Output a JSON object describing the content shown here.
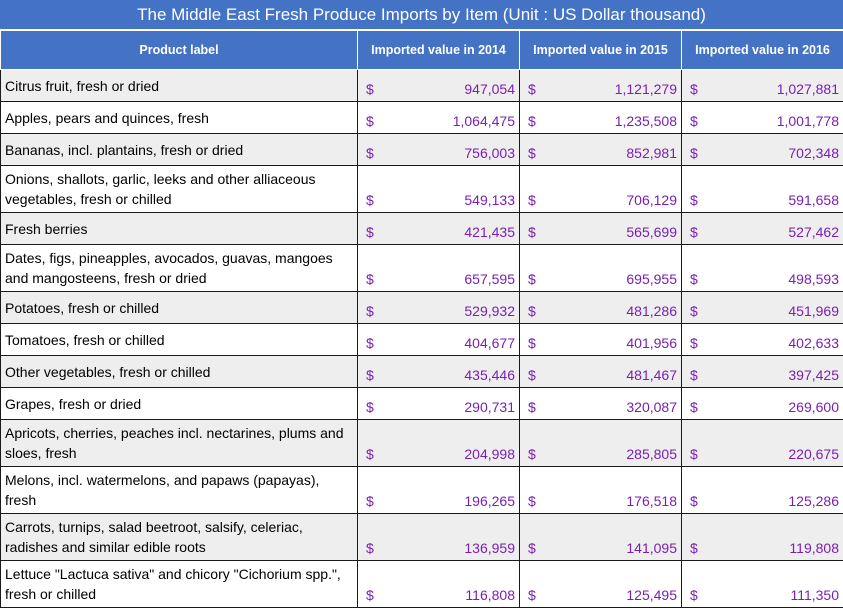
{
  "chart_data": {
    "type": "table",
    "title": "The Middle East Fresh Produce Imports by Item  (Unit : US Dollar thousand)",
    "columns": [
      "Product label",
      "Imported value in 2014",
      "Imported value in 2015",
      "Imported value in 2016"
    ],
    "currency_symbol": "$",
    "rows": [
      {
        "label": "Citrus fruit, fresh or dried",
        "values": [
          "947,054",
          "1,121,279",
          "1,027,881"
        ]
      },
      {
        "label": "Apples, pears and quinces, fresh",
        "values": [
          "1,064,475",
          "1,235,508",
          "1,001,778"
        ]
      },
      {
        "label": "Bananas, incl. plantains, fresh or dried",
        "values": [
          "756,003",
          "852,981",
          "702,348"
        ]
      },
      {
        "label": "Onions, shallots, garlic, leeks and other alliaceous vegetables, fresh or chilled",
        "values": [
          "549,133",
          "706,129",
          "591,658"
        ]
      },
      {
        "label": "Fresh berries",
        "values": [
          "421,435",
          "565,699",
          "527,462"
        ]
      },
      {
        "label": "Dates, figs, pineapples, avocados, guavas, mangoes and mangosteens, fresh or dried",
        "values": [
          "657,595",
          "695,955",
          "498,593"
        ]
      },
      {
        "label": "Potatoes, fresh or chilled",
        "values": [
          "529,932",
          "481,286",
          "451,969"
        ]
      },
      {
        "label": "Tomatoes, fresh or chilled",
        "values": [
          "404,677",
          "401,956",
          "402,633"
        ]
      },
      {
        "label": "Other vegetables, fresh or chilled",
        "values": [
          "435,446",
          "481,467",
          "397,425"
        ]
      },
      {
        "label": "Grapes, fresh or dried",
        "values": [
          "290,731",
          "320,087",
          "269,600"
        ]
      },
      {
        "label": "Apricots, cherries, peaches incl. nectarines, plums and sloes, fresh",
        "values": [
          "204,998",
          "285,805",
          "220,675"
        ]
      },
      {
        "label": "Melons, incl. watermelons, and papaws (papayas), fresh",
        "values": [
          "196,265",
          "176,518",
          "125,286"
        ]
      },
      {
        "label": "Carrots, turnips, salad beetroot, salsify, celeriac, radishes and similar edible roots",
        "values": [
          "136,959",
          "141,095",
          "119,808"
        ]
      },
      {
        "label": "Lettuce \"Lactuca sativa\" and chicory \"Cichorium spp.\", fresh or chilled",
        "values": [
          "116,808",
          "125,495",
          "111,350"
        ]
      }
    ]
  },
  "colors": {
    "header_bg": "#4472c4",
    "header_text": "#ffffff",
    "value_text": "#7a1fb3",
    "band_bg": "#eeeeee"
  }
}
